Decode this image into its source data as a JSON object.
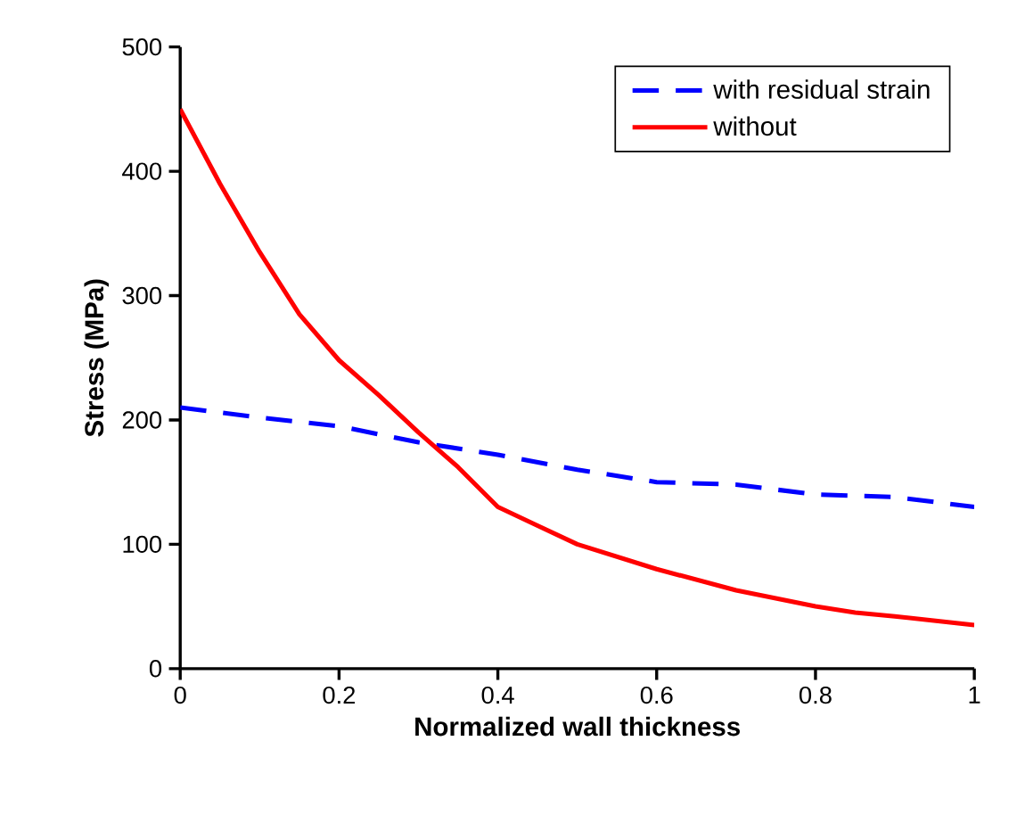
{
  "chart_data": {
    "type": "line",
    "xlabel": "Normalized wall thickness",
    "ylabel": "Stress (MPa)",
    "xlim": [
      0,
      1
    ],
    "ylim": [
      0,
      500
    ],
    "xticks": [
      0,
      0.2,
      0.4,
      0.6,
      0.8,
      1
    ],
    "yticks": [
      0,
      100,
      200,
      300,
      400,
      500
    ],
    "grid": false,
    "legend": "top right",
    "marker": "none",
    "series": [
      {
        "name": "with residual strain",
        "color": "#0000ff",
        "line_style": "dashed",
        "x": [
          0,
          0.1,
          0.2,
          0.3,
          0.4,
          0.5,
          0.6,
          0.7,
          0.8,
          0.9,
          1
        ],
        "values": [
          210,
          202,
          195,
          182,
          172,
          160,
          150,
          148,
          140,
          138,
          130
        ]
      },
      {
        "name": "without",
        "color": "#ff0000",
        "line_style": "solid",
        "x": [
          0,
          0.05,
          0.1,
          0.15,
          0.2,
          0.25,
          0.3,
          0.35,
          0.4,
          0.45,
          0.5,
          0.6,
          0.7,
          0.8,
          0.85,
          0.9,
          1
        ],
        "values": [
          450,
          390,
          335,
          285,
          248,
          220,
          190,
          162,
          130,
          115,
          100,
          80,
          63,
          50,
          45,
          42,
          35
        ]
      }
    ]
  }
}
